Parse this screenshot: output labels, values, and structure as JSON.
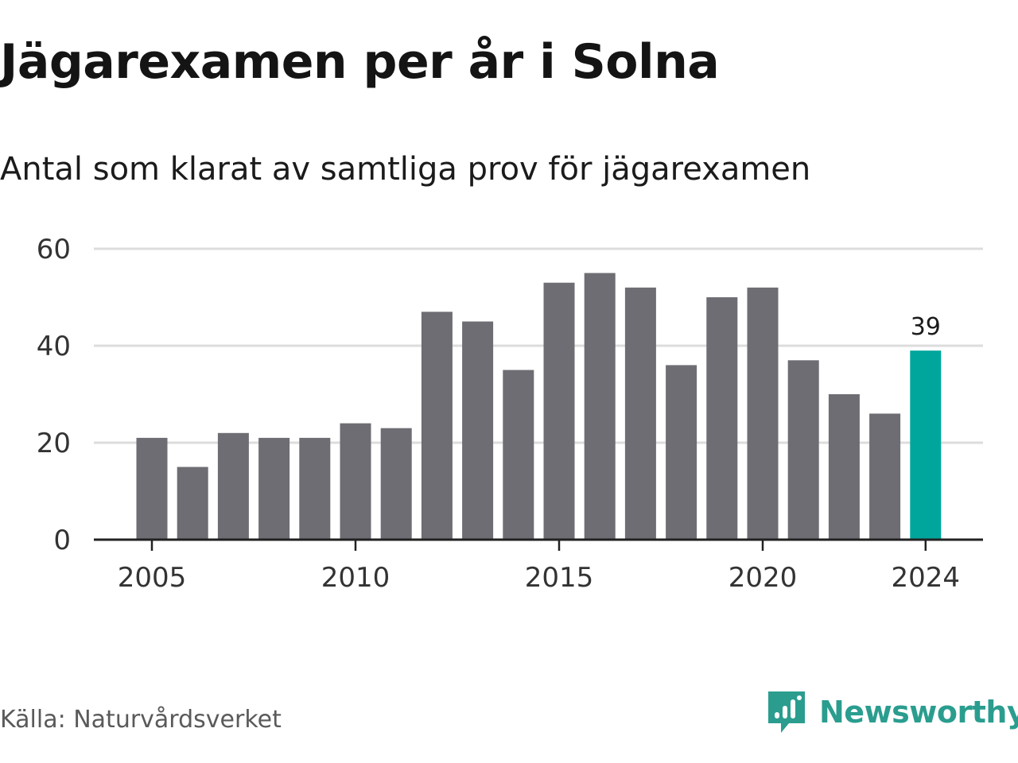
{
  "header": {
    "title": "Jägarexamen per år i Solna",
    "subtitle": "Antal som klarat av samtliga prov för jägarexamen"
  },
  "footer": {
    "source": "Källa: Naturvårdsverket",
    "brand_name": "Newsworthy",
    "brand_icon": "newsworthy-logo-icon"
  },
  "colors": {
    "bar": "#6d6d73",
    "highlight": "#00a69c",
    "grid": "#dcdcdc",
    "axis": "#222222",
    "brand": "#2a9d8f"
  },
  "chart_data": {
    "type": "bar",
    "x": [
      2005,
      2006,
      2007,
      2008,
      2009,
      2010,
      2011,
      2012,
      2013,
      2014,
      2015,
      2016,
      2017,
      2018,
      2019,
      2020,
      2021,
      2022,
      2023,
      2024
    ],
    "values": [
      21,
      15,
      22,
      21,
      21,
      24,
      23,
      47,
      45,
      35,
      53,
      55,
      52,
      36,
      50,
      52,
      37,
      30,
      26,
      39
    ],
    "highlight": 2024,
    "highlight_label": "39",
    "ylim": [
      0,
      60
    ],
    "yticks": [
      "0",
      "20",
      "40",
      "60"
    ],
    "xticks": [
      "2005",
      "2010",
      "2015",
      "2020",
      "2024"
    ],
    "grid": true,
    "title": "Jägarexamen per år i Solna",
    "subtitle": "Antal som klarat av samtliga prov för jägarexamen",
    "xlabel": "",
    "ylabel": ""
  }
}
